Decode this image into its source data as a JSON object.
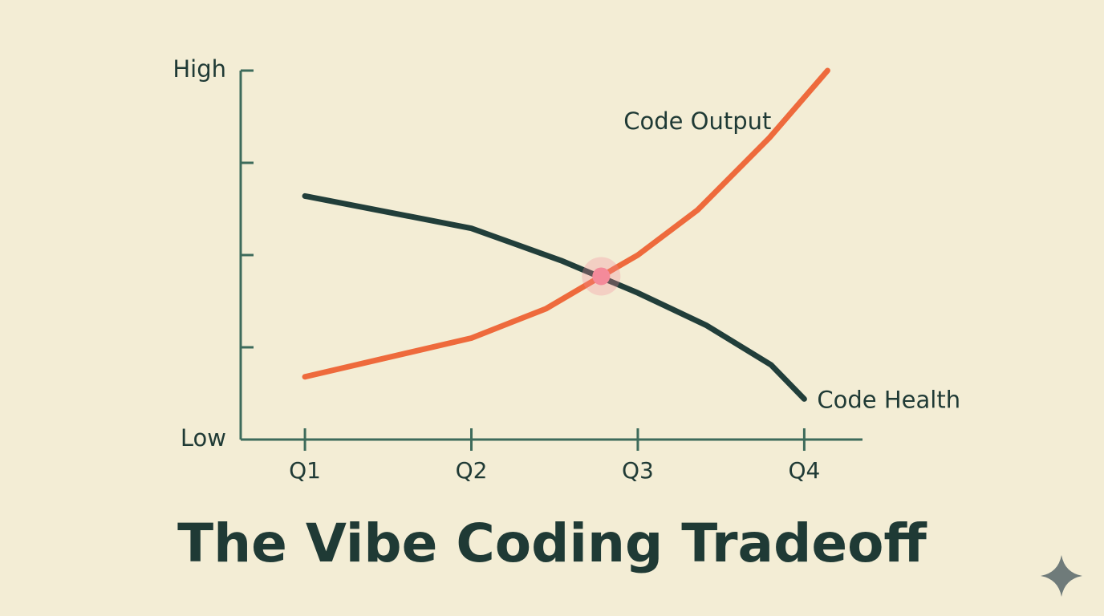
{
  "chart_data": {
    "type": "line",
    "title": "The Vibe Coding Tradeoff",
    "xlim": [
      0.614,
      4.35
    ],
    "xticks": [
      {
        "value": 1,
        "label": "Q1"
      },
      {
        "value": 2,
        "label": "Q2"
      },
      {
        "value": 3,
        "label": "Q3"
      },
      {
        "value": 4,
        "label": "Q4"
      }
    ],
    "ylim": [
      0,
      4
    ],
    "yticks": [
      {
        "value": 0,
        "label": "Low"
      },
      {
        "value": 4,
        "label": "High"
      }
    ],
    "minor_yticks": [
      1,
      2,
      3
    ],
    "series": [
      {
        "name": "Code Output",
        "color": "#ee6a3c",
        "x": [
          1,
          2,
          2.45,
          2.78,
          3,
          3.36,
          3.79,
          4.14
        ],
        "values": [
          0.68,
          1.1,
          1.42,
          1.77,
          2.0,
          2.49,
          3.27,
          4.0
        ]
      },
      {
        "name": "Code Health",
        "color": "#213e3a",
        "x": [
          1,
          2,
          2.54,
          3,
          3.41,
          3.8,
          4
        ],
        "values": [
          2.64,
          2.29,
          1.94,
          1.59,
          1.24,
          0.81,
          0.44
        ]
      }
    ],
    "highlight": {
      "x": 2.78,
      "y": 1.77,
      "color": "#f48a9a"
    }
  }
}
